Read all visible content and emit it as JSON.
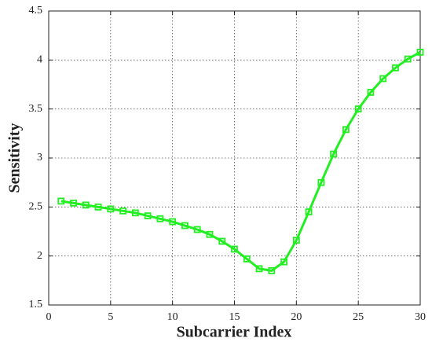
{
  "chart_data": {
    "type": "line",
    "xlabel": "Subcarrier Index",
    "ylabel": "Sensitivity",
    "x": [
      1,
      2,
      3,
      4,
      5,
      6,
      7,
      8,
      9,
      10,
      11,
      12,
      13,
      14,
      15,
      16,
      17,
      18,
      19,
      20,
      21,
      22,
      23,
      24,
      25,
      26,
      27,
      28,
      29,
      30
    ],
    "values": [
      2.56,
      2.54,
      2.52,
      2.5,
      2.48,
      2.46,
      2.44,
      2.41,
      2.38,
      2.35,
      2.31,
      2.27,
      2.22,
      2.15,
      2.07,
      1.97,
      1.87,
      1.85,
      1.94,
      2.16,
      2.45,
      2.75,
      3.04,
      3.29,
      3.5,
      3.67,
      3.81,
      3.92,
      4.01,
      4.08
    ],
    "color": "#22ee22",
    "xlim": [
      0,
      30
    ],
    "ylim": [
      1.5,
      4.5
    ],
    "xticks": [
      0,
      5,
      10,
      15,
      20,
      25,
      30
    ],
    "yticks": [
      1.5,
      2,
      2.5,
      3,
      3.5,
      4,
      4.5
    ],
    "grid": true
  }
}
